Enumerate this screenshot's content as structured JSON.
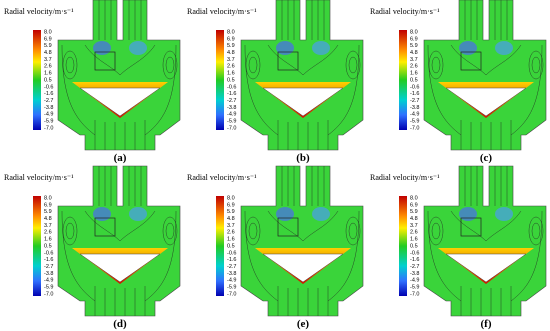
{
  "panels": [
    {
      "title": "Radial velocity/m·s⁻¹",
      "label": "(a)"
    },
    {
      "title": "Radial velocity/m·s⁻¹",
      "label": "(b)"
    },
    {
      "title": "Radial velocity/m·s⁻¹",
      "label": "(c)"
    },
    {
      "title": "Radial velocity/m·s⁻¹",
      "label": "(d)"
    },
    {
      "title": "Radial velocity/m·s⁻¹",
      "label": "(e)"
    },
    {
      "title": "Radial velocity/m·s⁻¹",
      "label": "(f)"
    }
  ],
  "colorbar": {
    "ticks": [
      "8.0",
      "6.9",
      "5.9",
      "4.8",
      "3.7",
      "2.6",
      "1.6",
      "0.5",
      "-0.6",
      "-1.6",
      "-2.7",
      "-3.8",
      "-4.9",
      "-5.9",
      "-7.0"
    ]
  }
}
